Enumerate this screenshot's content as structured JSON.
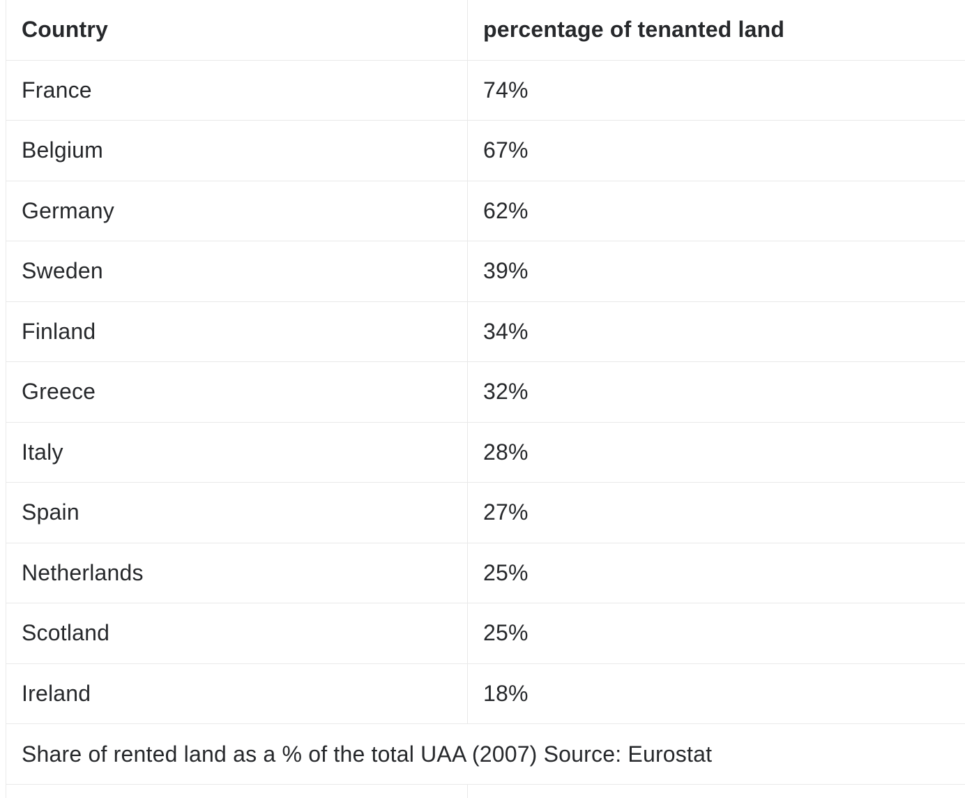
{
  "table": {
    "columns": [
      "Country",
      "percentage of tenanted land"
    ],
    "rows": [
      {
        "country": "France",
        "percentage": "74%"
      },
      {
        "country": "Belgium",
        "percentage": "67%"
      },
      {
        "country": "Germany",
        "percentage": "62%"
      },
      {
        "country": "Sweden",
        "percentage": "39%"
      },
      {
        "country": "Finland",
        "percentage": "34%"
      },
      {
        "country": "Greece",
        "percentage": "32%"
      },
      {
        "country": "Italy",
        "percentage": "28%"
      },
      {
        "country": "Spain",
        "percentage": "27%"
      },
      {
        "country": "Netherlands",
        "percentage": "25%"
      },
      {
        "country": "Scotland",
        "percentage": "25%"
      },
      {
        "country": "Ireland",
        "percentage": "18%"
      }
    ],
    "caption": "Share of rented land as a % of the total UAA (2007) Source: Eurostat"
  },
  "chart_data": {
    "type": "table",
    "title": "Share of rented land as a % of the total UAA (2007)",
    "source": "Eurostat",
    "columns": [
      "Country",
      "percentage of tenanted land"
    ],
    "categories": [
      "France",
      "Belgium",
      "Germany",
      "Sweden",
      "Finland",
      "Greece",
      "Italy",
      "Spain",
      "Netherlands",
      "Scotland",
      "Ireland"
    ],
    "values": [
      74,
      67,
      62,
      39,
      34,
      32,
      28,
      27,
      25,
      25,
      18
    ],
    "unit": "%"
  },
  "colors": {
    "text": "#26282b",
    "border": "#e9e9e9",
    "background": "#ffffff"
  }
}
